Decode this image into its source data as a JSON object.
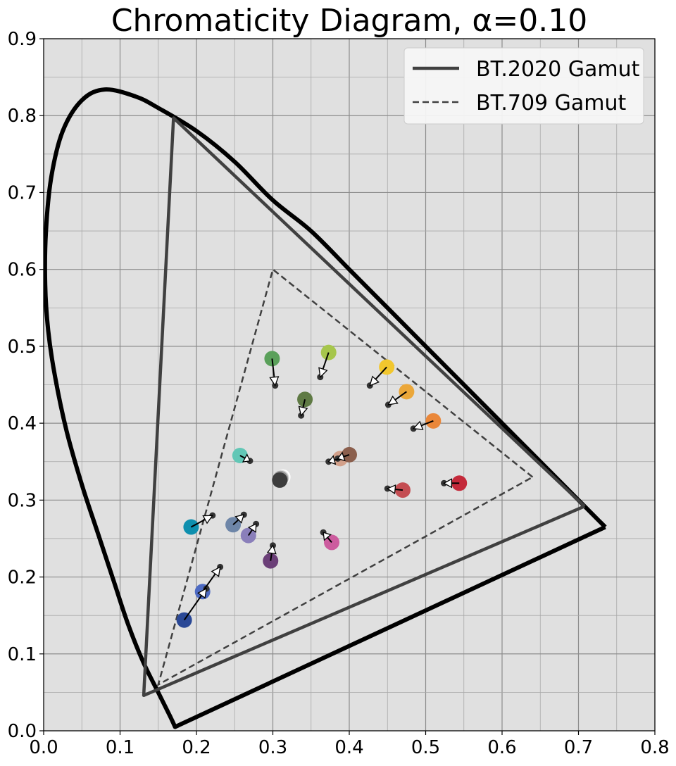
{
  "chart_data": {
    "type": "scatter",
    "title": "Chromaticity Diagram, α=0.10",
    "xlabel": "",
    "ylabel": "",
    "xlim": [
      0.0,
      0.8
    ],
    "ylim": [
      0.0,
      0.9
    ],
    "grid": true,
    "x_ticks": [
      "0.0",
      "0.1",
      "0.2",
      "0.3",
      "0.4",
      "0.5",
      "0.6",
      "0.7",
      "0.8"
    ],
    "y_ticks": [
      "0.0",
      "0.1",
      "0.2",
      "0.3",
      "0.4",
      "0.5",
      "0.6",
      "0.7",
      "0.8",
      "0.9"
    ],
    "legend": {
      "position": "top-right",
      "entries": [
        {
          "label": "BT.2020 Gamut",
          "style": "solid"
        },
        {
          "label": "BT.709 Gamut",
          "style": "dashed"
        }
      ]
    },
    "spectral_locus": [
      [
        0.735,
        0.265
      ],
      [
        0.72,
        0.28
      ],
      [
        0.69,
        0.31
      ],
      [
        0.65,
        0.35
      ],
      [
        0.6,
        0.4
      ],
      [
        0.55,
        0.45
      ],
      [
        0.5,
        0.5
      ],
      [
        0.45,
        0.55
      ],
      [
        0.4,
        0.6
      ],
      [
        0.35,
        0.65
      ],
      [
        0.3,
        0.69
      ],
      [
        0.25,
        0.74
      ],
      [
        0.2,
        0.78
      ],
      [
        0.15,
        0.81
      ],
      [
        0.12,
        0.825
      ],
      [
        0.08,
        0.834
      ],
      [
        0.05,
        0.82
      ],
      [
        0.025,
        0.78
      ],
      [
        0.01,
        0.72
      ],
      [
        0.003,
        0.65
      ],
      [
        0.002,
        0.58
      ],
      [
        0.006,
        0.52
      ],
      [
        0.015,
        0.46
      ],
      [
        0.03,
        0.39
      ],
      [
        0.05,
        0.32
      ],
      [
        0.07,
        0.26
      ],
      [
        0.09,
        0.2
      ],
      [
        0.11,
        0.14
      ],
      [
        0.13,
        0.09
      ],
      [
        0.15,
        0.05
      ],
      [
        0.165,
        0.02
      ],
      [
        0.172,
        0.005
      ],
      [
        0.735,
        0.265
      ]
    ],
    "gamuts": [
      {
        "name": "BT.2020 Gamut",
        "style": "solid",
        "points": [
          [
            0.708,
            0.292
          ],
          [
            0.17,
            0.797
          ],
          [
            0.131,
            0.046
          ],
          [
            0.708,
            0.292
          ]
        ]
      },
      {
        "name": "BT.709 Gamut",
        "style": "dashed",
        "points": [
          [
            0.64,
            0.33
          ],
          [
            0.3,
            0.6
          ],
          [
            0.15,
            0.06
          ],
          [
            0.64,
            0.33
          ]
        ]
      }
    ],
    "samples": [
      {
        "color": "#5aa05a",
        "from": [
          0.299,
          0.484
        ],
        "to": [
          0.303,
          0.449
        ]
      },
      {
        "color": "#a6c64c",
        "from": [
          0.373,
          0.492
        ],
        "to": [
          0.362,
          0.46
        ]
      },
      {
        "color": "#f2c72e",
        "from": [
          0.449,
          0.473
        ],
        "to": [
          0.427,
          0.449
        ]
      },
      {
        "color": "#eba73a",
        "from": [
          0.475,
          0.441
        ],
        "to": [
          0.451,
          0.424
        ]
      },
      {
        "color": "#5f7a44",
        "from": [
          0.342,
          0.431
        ],
        "to": [
          0.337,
          0.41
        ]
      },
      {
        "color": "#ea8739",
        "from": [
          0.51,
          0.403
        ],
        "to": [
          0.484,
          0.393
        ]
      },
      {
        "color": "#62c7b6",
        "from": [
          0.257,
          0.358
        ],
        "to": [
          0.27,
          0.351
        ]
      },
      {
        "color": "#d2a08a",
        "from": [
          0.388,
          0.354
        ],
        "to": [
          0.373,
          0.35
        ]
      },
      {
        "color": "#8b5f4d",
        "from": [
          0.4,
          0.359
        ],
        "to": [
          0.385,
          0.354
        ]
      },
      {
        "color": "#ffffff",
        "from": [
          0.313,
          0.33
        ],
        "to": [
          0.313,
          0.33
        ]
      },
      {
        "color": "#d6d6d6",
        "from": [
          0.311,
          0.329
        ],
        "to": [
          0.311,
          0.329
        ]
      },
      {
        "color": "#9a9a9a",
        "from": [
          0.31,
          0.328
        ],
        "to": [
          0.31,
          0.328
        ]
      },
      {
        "color": "#3c3c3c",
        "from": [
          0.309,
          0.326
        ],
        "to": [
          0.309,
          0.326
        ]
      },
      {
        "color": "#c44d52",
        "from": [
          0.47,
          0.313
        ],
        "to": [
          0.45,
          0.315
        ]
      },
      {
        "color": "#c4293a",
        "from": [
          0.544,
          0.322
        ],
        "to": [
          0.524,
          0.322
        ]
      },
      {
        "color": "#0e8fae",
        "from": [
          0.193,
          0.265
        ],
        "to": [
          0.221,
          0.28
        ]
      },
      {
        "color": "#6e86a8",
        "from": [
          0.248,
          0.268
        ],
        "to": [
          0.262,
          0.281
        ]
      },
      {
        "color": "#8a7fba",
        "from": [
          0.268,
          0.254
        ],
        "to": [
          0.278,
          0.269
        ]
      },
      {
        "color": "#cc5b9e",
        "from": [
          0.377,
          0.245
        ],
        "to": [
          0.366,
          0.258
        ]
      },
      {
        "color": "#6b3f78",
        "from": [
          0.297,
          0.221
        ],
        "to": [
          0.3,
          0.241
        ]
      },
      {
        "color": "#4d6ac2",
        "from": [
          0.208,
          0.181
        ],
        "to": [
          0.231,
          0.213
        ]
      },
      {
        "color": "#2a4896",
        "from": [
          0.184,
          0.144
        ],
        "to": [
          0.213,
          0.185
        ]
      }
    ]
  }
}
